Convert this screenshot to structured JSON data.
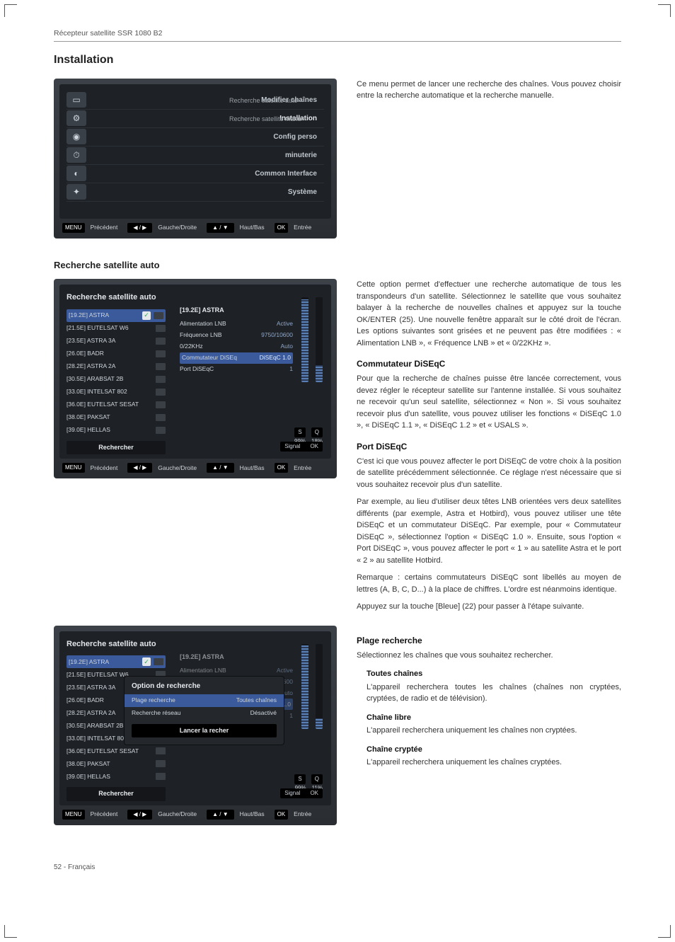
{
  "doc": {
    "running_head": "Récepteur satellite SSR 1080 B2",
    "page_footer": "52  -  Français",
    "h1": "Installation",
    "h2_auto": "Recherche satellite auto"
  },
  "osd_menu": {
    "items": [
      {
        "icon": "▭",
        "label": "Modifier chaînes"
      },
      {
        "icon": "⚙",
        "label": "Installation",
        "active": true
      },
      {
        "icon": "◉",
        "label": "Config perso"
      },
      {
        "icon": "⏱",
        "label": "minuterie"
      },
      {
        "icon": "◐",
        "label": "Common Interface"
      },
      {
        "icon": "✦",
        "label": "Système"
      }
    ],
    "sublist": [
      "Recherche satellite auto",
      "Recherche satellite manu"
    ],
    "footer": [
      {
        "key": "MENU",
        "txt": "Précédent"
      },
      {
        "key": "◀ / ▶",
        "txt": "Gauche/Droite"
      },
      {
        "key": "▲ / ▼",
        "txt": "Haut/Bas"
      },
      {
        "key": "OK",
        "txt": "Entrée"
      }
    ]
  },
  "intro_para": "Ce menu permet de lancer une recherche des chaînes. Vous pouvez choisir entre la recherche automatique et la recherche manuelle.",
  "osd_sat": {
    "title": "Recherche satellite auto",
    "satellites": [
      {
        "name": "[19.2E] ASTRA",
        "sel": true,
        "chk": true
      },
      {
        "name": "[21.5E] EUTELSAT W6"
      },
      {
        "name": "[23.5E] ASTRA 3A"
      },
      {
        "name": "[26.0E] BADR"
      },
      {
        "name": "[28.2E] ASTRA 2A"
      },
      {
        "name": "[30.5E] ARABSAT 2B"
      },
      {
        "name": "[33.0E] INTELSAT 802"
      },
      {
        "name": "[36.0E] EUTELSAT SESAT"
      },
      {
        "name": "[38.0E] PAKSAT"
      },
      {
        "name": "[39.0E] HELLAS"
      }
    ],
    "search_btn": "Rechercher",
    "detail_title": "[19.2E] ASTRA",
    "details": [
      {
        "k": "Alimentation LNB",
        "v": "Active"
      },
      {
        "k": "Fréquence LNB",
        "v": "9750/10600"
      },
      {
        "k": "0/22KHz",
        "v": "Auto"
      },
      {
        "k": "Commutateur DiSEq",
        "v": "DiSEqC 1.0",
        "sel": true
      },
      {
        "k": "Port DiSEqC",
        "v": "1"
      }
    ],
    "sig_s": "S",
    "sig_q": "Q",
    "sig_s_pct": "99%",
    "sig_q_pct": "18%",
    "strip_l": "Signal",
    "strip_r": "OK",
    "bar_s_fill": 98,
    "bar_q_fill": 20
  },
  "osd_dlg": {
    "title": "Option de recherche",
    "rows": [
      {
        "k": "Plage recherche",
        "v": "Toutes chaînes",
        "sel": true
      },
      {
        "k": "Recherche réseau",
        "v": "Désactivé"
      }
    ],
    "btn": "Lancer la recher",
    "sig_q_pct": "11%"
  },
  "right": {
    "auto_para": "Cette option permet d'effectuer une recherche automatique de tous les transpondeurs d'un satellite. Sélectionnez le satellite que vous souhaitez balayer à la recherche de nouvelles chaînes et appuyez sur la touche OK/ENTER (25). Une nouvelle fenêtre apparaît sur le côté droit de l'écran. Les options suivantes sont grisées et ne peuvent pas être modifiées : « Alimentation LNB », « Fréquence LNB » et « 0/22KHz ».",
    "h_comm": "Commutateur DiSEqC",
    "comm_para": "Pour que la recherche de chaînes puisse être lancée correctement, vous devez régler le récepteur satellite sur l'antenne installée. Si vous souhaitez ne recevoir qu'un seul satellite, sélectionnez « Non ». Si vous souhaitez recevoir plus d'un satellite, vous pouvez utiliser les fonctions « DiSEqC 1.0 », « DiSEqC 1.1 », « DiSEqC 1.2 » et « USALS ».",
    "h_port": "Port DiSEqC",
    "port_p1": "C'est ici que vous pouvez affecter le port DiSEqC de votre choix à la position de satellite précédemment sélectionnée. Ce réglage n'est nécessaire que si vous souhaitez recevoir plus d'un satellite.",
    "port_p2": "Par exemple, au lieu d'utiliser deux têtes LNB orientées vers deux satellites différents (par exemple, Astra et Hotbird), vous pouvez utiliser une tête DiSEqC et un commutateur DiSEqC. Par exemple, pour « Commutateur DiSEqC », sélectionnez l'option « DiSEqC 1.0 ». Ensuite, sous l'option « Port DiSEqC », vous pouvez affecter le port « 1 » au satellite Astra et le port « 2 » au satellite Hotbird.",
    "port_p3": "Remarque : certains commutateurs DiSEqC sont libellés au moyen de lettres (A, B, C, D...) à la place de chiffres. L'ordre est néanmoins identique.",
    "port_p4": "Appuyez sur la touche [Bleue] (22) pour passer à l'étape suivante.",
    "h_plage": "Plage recherche",
    "plage_p": "Sélectionnez les chaînes que vous souhaitez rechercher.",
    "h_toutes": "Toutes chaînes",
    "toutes_p": "L'appareil recherchera toutes les chaînes (chaînes non cryptées, cryptées, de radio et de télévision).",
    "h_libre": "Chaîne libre",
    "libre_p": "L'appareil recherchera uniquement les chaînes non cryptées.",
    "h_crypt": "Chaîne cryptée",
    "crypt_p": "L'appareil recherchera uniquement les chaînes cryptées."
  }
}
